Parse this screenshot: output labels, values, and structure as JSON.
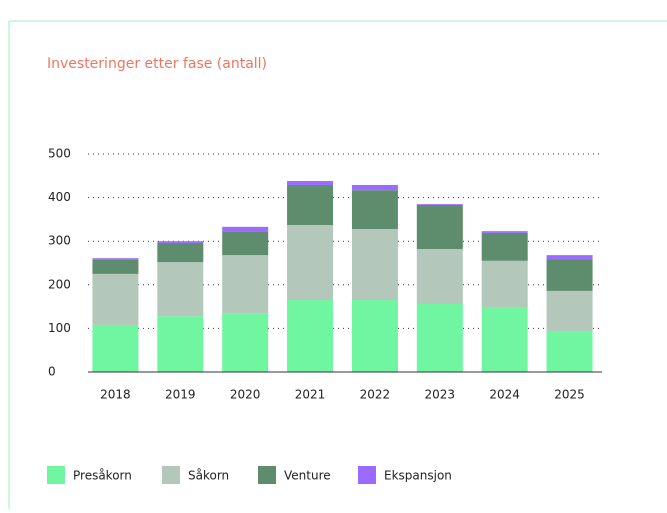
{
  "chart_data": {
    "type": "stacked_bar",
    "title": "Investeringer etter fase (antall)",
    "categories": [
      "2018",
      "2019",
      "2020",
      "2021",
      "2022",
      "2023",
      "2024",
      "2025"
    ],
    "series": [
      {
        "name": "Presåkorn",
        "color": "#70f5a1",
        "values": [
          108,
          128,
          135,
          165,
          165,
          156,
          147,
          94
        ]
      },
      {
        "name": "Såkorn",
        "color": "#b3c7ba",
        "values": [
          117,
          124,
          133,
          172,
          163,
          126,
          108,
          92
        ]
      },
      {
        "name": "Venture",
        "color": "#5e8d6e",
        "values": [
          32,
          44,
          55,
          92,
          89,
          101,
          64,
          73
        ]
      },
      {
        "name": "Ekspansjon",
        "color": "#9b6bff",
        "values": [
          4,
          4,
          10,
          9,
          12,
          2,
          4,
          9
        ]
      }
    ],
    "ylim": [
      0,
      500
    ],
    "yticks": [
      0,
      100,
      200,
      300,
      400,
      500
    ],
    "grid": true,
    "legend": "bottom"
  }
}
